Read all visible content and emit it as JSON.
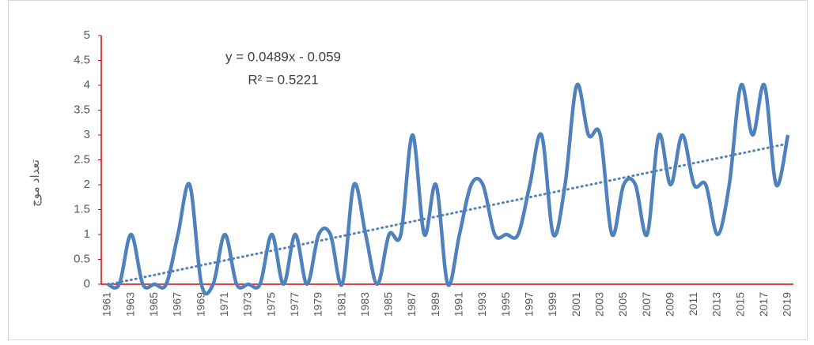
{
  "chart_data": {
    "type": "line",
    "y_label": "تعداد موج",
    "categories": [
      1961,
      null,
      1963,
      null,
      1965,
      null,
      1967,
      null,
      1969,
      null,
      1971,
      null,
      1973,
      null,
      1975,
      null,
      1977,
      null,
      1979,
      null,
      1981,
      null,
      1983,
      null,
      1985,
      null,
      1987,
      null,
      1989,
      null,
      1991,
      null,
      1993,
      null,
      1995,
      null,
      1997,
      null,
      1999,
      null,
      2001,
      null,
      2003,
      null,
      2005,
      null,
      2007,
      null,
      2009,
      null,
      2011,
      null,
      2013,
      null,
      2015,
      null,
      2017,
      null,
      2019
    ],
    "series": [
      {
        "name": "تعداد موج",
        "color": "#4f81bd",
        "values": [
          0,
          0,
          1,
          0,
          0,
          0,
          1,
          2,
          0,
          0,
          1,
          0,
          0,
          0,
          1,
          0,
          1,
          0,
          1,
          1,
          0,
          2,
          1,
          0,
          1,
          1,
          3,
          1,
          2,
          0,
          1,
          2,
          2,
          1,
          1,
          1,
          2,
          3,
          1,
          2,
          4,
          3,
          3,
          1,
          2,
          2,
          1,
          3,
          2,
          3,
          2,
          2,
          1,
          2,
          4,
          3,
          4,
          2,
          3
        ]
      }
    ],
    "trendline": {
      "slope": 0.0489,
      "intercept": -0.059,
      "color": "#4f81bd",
      "equation": "y = 0.0489x - 0.059",
      "r_squared": "R² = 0.5221"
    },
    "ylim": [
      0,
      5
    ],
    "yticks": [
      0,
      0.5,
      1,
      1.5,
      2,
      2.5,
      3,
      3.5,
      4,
      4.5,
      5
    ],
    "axis_color": "#e00000"
  }
}
